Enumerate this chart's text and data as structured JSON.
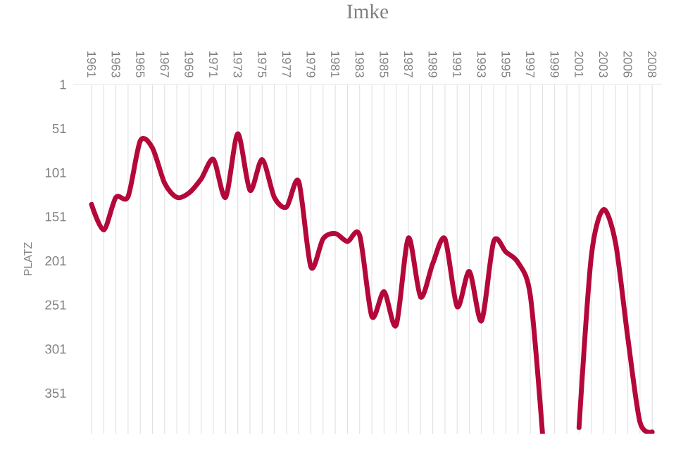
{
  "chart_data": {
    "type": "line",
    "title": "Imke",
    "ylabel": "PLATZ",
    "categories": [
      "1961",
      null,
      "1963",
      null,
      "1965",
      null,
      "1967",
      null,
      "1969",
      null,
      "1971",
      null,
      "1973",
      null,
      "1975",
      null,
      "1977",
      null,
      "1979",
      null,
      "1981",
      null,
      "1983",
      null,
      "1985",
      null,
      "1987",
      null,
      "1989",
      null,
      "1991",
      null,
      "1993",
      null,
      "1995",
      null,
      "1997",
      null,
      "1999",
      null,
      "2001",
      null,
      "2003",
      null,
      "2006",
      null,
      "2008"
    ],
    "series": [
      {
        "color": "#b5083a",
        "values": [
          137,
          166,
          129,
          128,
          65,
          73,
          113,
          129,
          124,
          108,
          86,
          129,
          57,
          121,
          86,
          129,
          140,
          111,
          208,
          176,
          170,
          179,
          172,
          264,
          236,
          274,
          175,
          242,
          204,
          176,
          253,
          213,
          269,
          179,
          191,
          203,
          240,
          396,
          null,
          null,
          390,
          197,
          143,
          181,
          288,
          384,
          395
        ]
      }
    ],
    "ylim": [
      397,
      1
    ],
    "yticks": [
      1,
      51,
      101,
      151,
      201,
      251,
      301,
      351
    ],
    "grid": "x",
    "marker": "none",
    "line_style": "solid"
  }
}
